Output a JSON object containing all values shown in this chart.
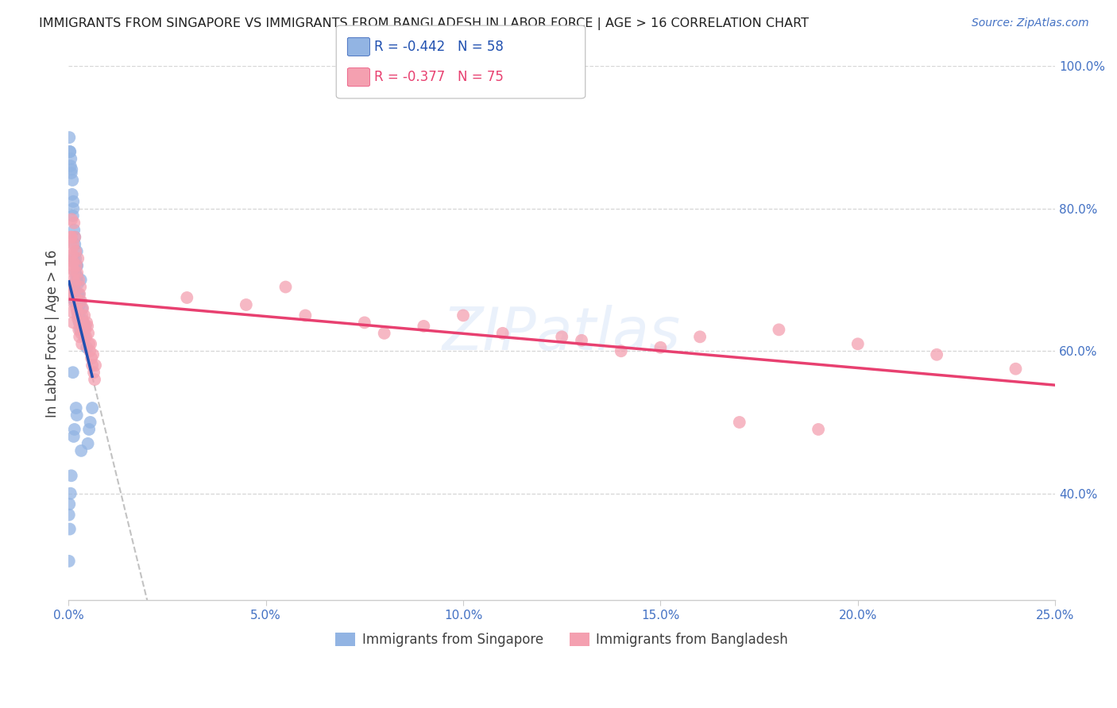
{
  "title": "IMMIGRANTS FROM SINGAPORE VS IMMIGRANTS FROM BANGLADESH IN LABOR FORCE | AGE > 16 CORRELATION CHART",
  "source": "Source: ZipAtlas.com",
  "ylabel": "In Labor Force | Age > 16",
  "xlim": [
    0.0,
    25.0
  ],
  "ylim": [
    25.0,
    100.0
  ],
  "watermark": "ZIPatlas",
  "legend1_r": "-0.442",
  "legend1_n": "58",
  "legend2_r": "-0.377",
  "legend2_n": "75",
  "singapore_color": "#92b4e3",
  "bangladesh_color": "#f4a0b0",
  "singapore_line_color": "#2050b0",
  "bangladesh_line_color": "#e84070",
  "dashed_line_color": "#b8b8b8",
  "title_color": "#202020",
  "axis_color": "#4472c4",
  "grid_color": "#cccccc",
  "background_color": "#ffffff",
  "sg_x": [
    0.1,
    0.13,
    0.16,
    0.18,
    0.21,
    0.23,
    0.26,
    0.29,
    0.31,
    0.34,
    0.37,
    0.4,
    0.43,
    0.46,
    0.07,
    0.09,
    0.11,
    0.12,
    0.05,
    0.03,
    0.15,
    0.17,
    0.19,
    0.22,
    0.24,
    0.27,
    0.3,
    0.33,
    0.02,
    0.04,
    0.06,
    0.08,
    0.1,
    0.12,
    0.14,
    0.16,
    0.18,
    0.2,
    0.22,
    0.24,
    0.26,
    0.28,
    0.01,
    0.02,
    0.03,
    0.19,
    0.21,
    0.13,
    0.15,
    0.05,
    0.07,
    0.32,
    0.11,
    0.01,
    0.49,
    0.52,
    0.55,
    0.6
  ],
  "sg_y": [
    67.5,
    73.0,
    76.0,
    71.0,
    74.0,
    68.0,
    65.0,
    67.0,
    70.0,
    66.0,
    64.0,
    62.0,
    63.5,
    60.5,
    85.0,
    82.0,
    79.0,
    80.0,
    86.0,
    88.0,
    67.0,
    68.5,
    70.0,
    72.0,
    65.0,
    64.0,
    63.0,
    64.5,
    90.0,
    88.0,
    87.0,
    85.5,
    84.0,
    81.0,
    77.0,
    75.0,
    73.0,
    72.0,
    70.5,
    69.5,
    68.0,
    66.5,
    37.0,
    38.5,
    35.0,
    52.0,
    51.0,
    48.0,
    49.0,
    40.0,
    42.5,
    46.0,
    57.0,
    30.5,
    47.0,
    49.0,
    50.0,
    52.0
  ],
  "bd_x": [
    0.1,
    0.12,
    0.14,
    0.16,
    0.18,
    0.2,
    0.22,
    0.24,
    0.26,
    0.28,
    0.3,
    0.32,
    0.34,
    0.36,
    0.38,
    0.4,
    0.42,
    0.44,
    0.46,
    0.48,
    0.5,
    0.52,
    0.54,
    0.56,
    0.58,
    0.6,
    0.62,
    0.64,
    0.66,
    0.68,
    0.06,
    0.08,
    0.1,
    0.12,
    0.14,
    0.16,
    0.18,
    0.2,
    0.22,
    0.24,
    0.26,
    0.28,
    0.3,
    0.32,
    0.34,
    0.04,
    0.06,
    0.08,
    0.1,
    0.12,
    0.05,
    0.07,
    0.09,
    0.11,
    0.13,
    5.5,
    8.0,
    10.0,
    12.5,
    14.0,
    16.0,
    18.0,
    20.0,
    22.0,
    24.0,
    3.0,
    4.5,
    6.0,
    7.5,
    9.0,
    11.0,
    13.0,
    15.0,
    17.0,
    19.0
  ],
  "bd_y": [
    72.0,
    75.0,
    78.0,
    76.0,
    74.0,
    72.0,
    71.0,
    73.0,
    70.0,
    68.0,
    69.0,
    67.0,
    65.0,
    66.0,
    64.0,
    65.0,
    63.0,
    62.0,
    64.0,
    63.5,
    62.5,
    61.0,
    60.0,
    61.0,
    59.0,
    58.0,
    59.5,
    57.0,
    56.0,
    58.0,
    76.0,
    78.5,
    74.5,
    72.5,
    71.0,
    69.5,
    67.5,
    66.0,
    65.5,
    64.5,
    63.0,
    62.0,
    63.5,
    62.5,
    61.0,
    68.0,
    68.5,
    67.0,
    65.5,
    64.0,
    73.0,
    76.0,
    73.5,
    71.5,
    70.0,
    69.0,
    62.5,
    65.0,
    62.0,
    60.0,
    62.0,
    63.0,
    61.0,
    59.5,
    57.5,
    67.5,
    66.5,
    65.0,
    64.0,
    63.5,
    62.5,
    61.5,
    60.5,
    50.0,
    49.0
  ]
}
